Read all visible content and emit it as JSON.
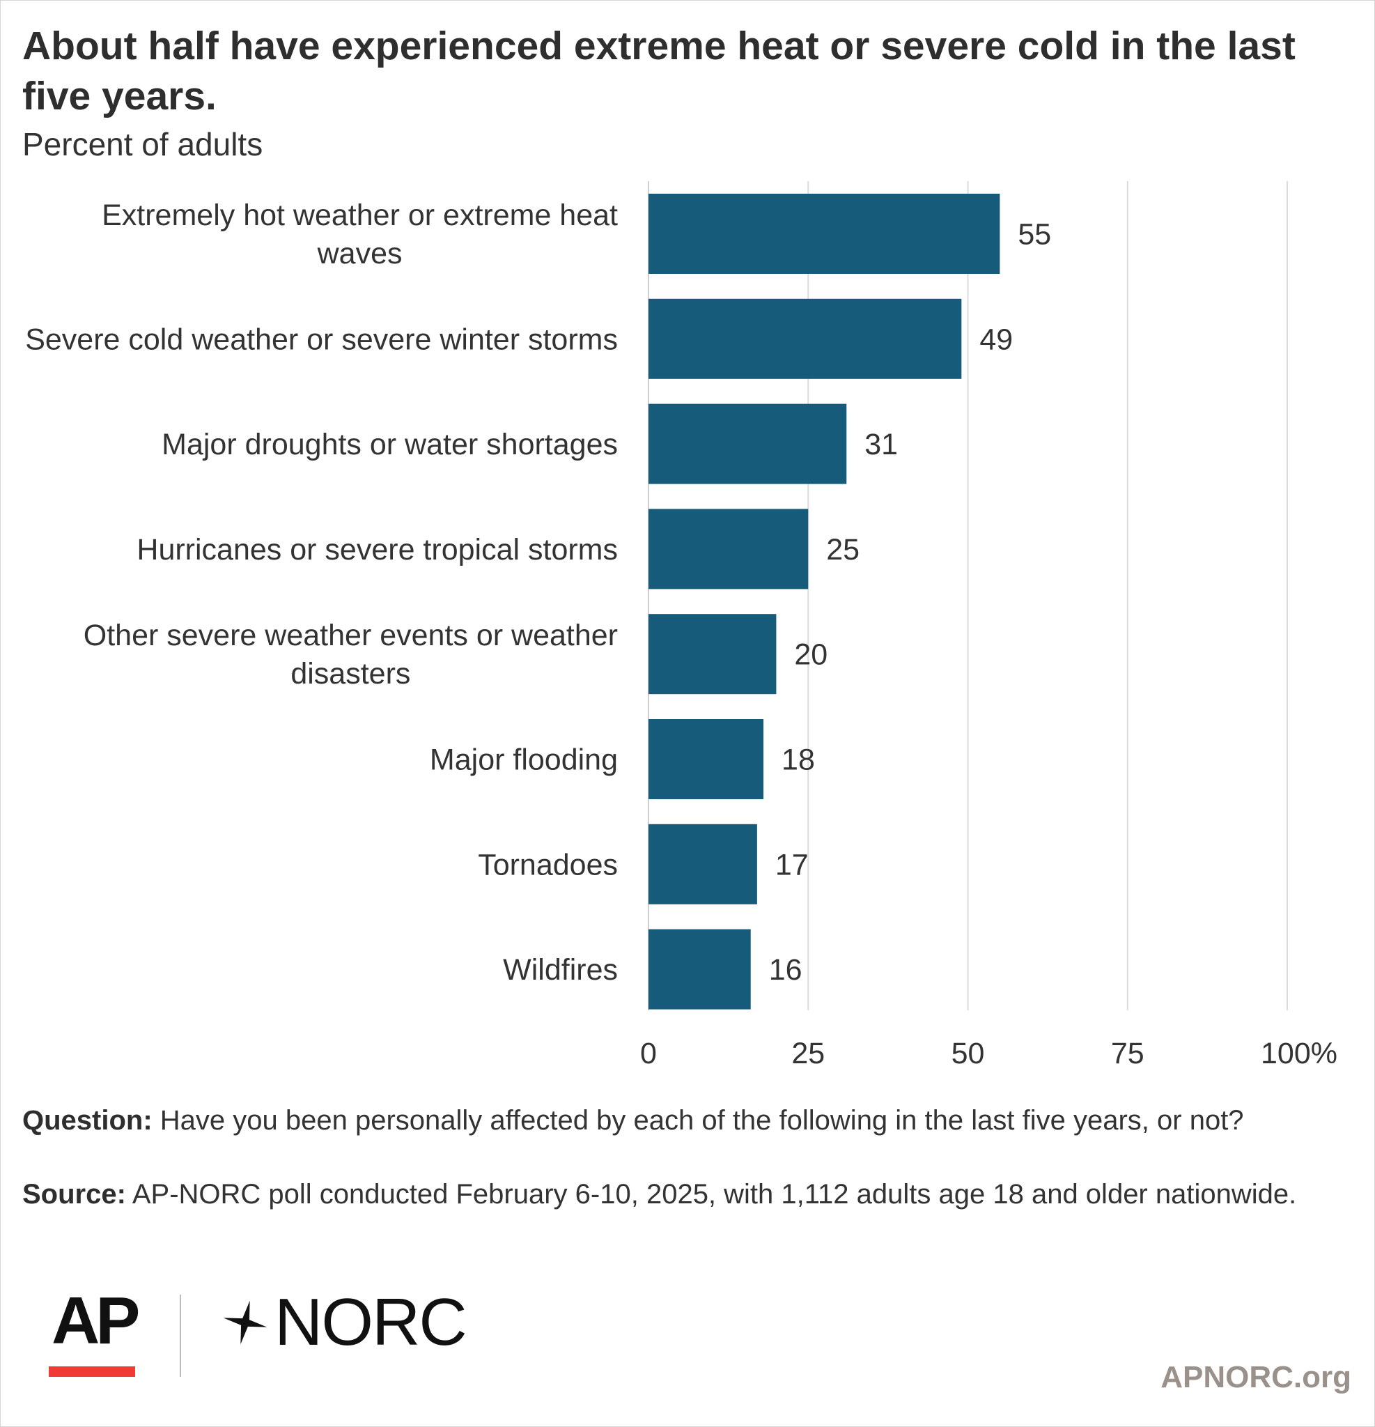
{
  "header": {
    "title": "About half have experienced extreme heat or severe cold in the last five years.",
    "subtitle": "Percent of adults"
  },
  "chart_data": {
    "type": "bar",
    "orientation": "horizontal",
    "categories": [
      "Extremely hot weather or extreme heat waves",
      "Severe cold weather or severe winter storms",
      "Major droughts or water shortages",
      "Hurricanes or severe tropical storms",
      "Other severe weather events or weather disasters",
      "Major flooding",
      "Tornadoes",
      "Wildfires"
    ],
    "values": [
      55,
      49,
      31,
      25,
      20,
      18,
      17,
      16
    ],
    "xlim": [
      0,
      100
    ],
    "xticks": [
      0,
      25,
      50,
      75,
      100
    ],
    "xtick_labels": [
      "0",
      "25",
      "50",
      "75",
      "100%"
    ],
    "grid": true,
    "bar_color": "#175b7b"
  },
  "notes": {
    "question_label": "Question:",
    "question_text": " Have you been personally affected by each of the following in the last five years, or not?",
    "source_label": "Source:",
    "source_text": " AP-NORC poll conducted February 6-10, 2025, with 1,112 adults age 18 and older nationwide."
  },
  "branding": {
    "ap_logo": "AP",
    "norc_logo": "NORC",
    "website": "APNORC.org",
    "ap_red": "#ef3a36"
  }
}
